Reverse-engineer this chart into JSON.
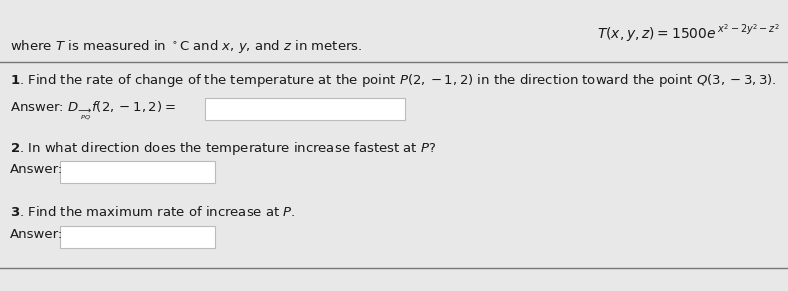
{
  "background_color": "#e8e8e8",
  "title_formula": "$T(x, y, z) = 1500e^{x^2-2y^2-z^2}$",
  "subtitle": "where $T$ is measured in $^{\\circ}$C and $x$, $y$, and $z$ in meters.",
  "q1_text": "1. Find the rate of change of the temperature at the point $P(2,-1,2)$ in the direction toward the point $Q(3,-3,3)$.",
  "q1_answer_label": "Answer: $D_{\\underset{\\scriptstyle PQ}{\\rightarrow}} f(2,-1,2) =$",
  "q2_text": "2. In what direction does the temperature increase fastest at $P$?",
  "q2_answer_label": "Answer:",
  "q3_text": "3. Find the maximum rate of increase at $P$.",
  "q3_answer_label": "Answer:",
  "input_box_color": "#ffffff",
  "input_box_border": "#bbbbbb",
  "text_color": "#1a1a1a",
  "divider_color": "#777777",
  "fig_w": 7.88,
  "fig_h": 2.91,
  "dpi": 100
}
